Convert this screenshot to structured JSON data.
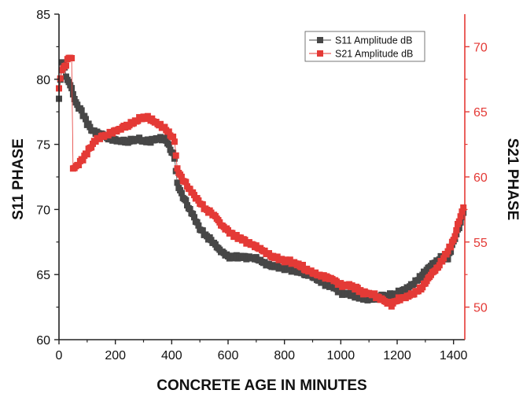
{
  "chart_data": {
    "type": "scatter",
    "title": "",
    "xlabel": "CONCRETE AGE IN MINUTES",
    "ylabel_left": "S11 PHASE",
    "ylabel_right": "S21 PHASE",
    "xlim": [
      0,
      1440
    ],
    "ylim_left": [
      60,
      85
    ],
    "ylim_right": [
      47.5,
      72.5
    ],
    "x_ticks": [
      0,
      200,
      400,
      600,
      800,
      1000,
      1200,
      1400
    ],
    "y_left_ticks": [
      60,
      65,
      70,
      75,
      80,
      85
    ],
    "y_right_ticks": [
      50,
      55,
      60,
      65,
      70
    ],
    "grid": false,
    "legend_position": "top-right",
    "colors": {
      "s11": "#474747",
      "s21": "#e43a36",
      "right_axis": "#e43a36"
    },
    "series": [
      {
        "name": "S11 Amplitude dB",
        "axis": "left",
        "color": "#474747",
        "x": [
          0,
          10,
          20,
          30,
          40,
          50,
          60,
          80,
          100,
          120,
          150,
          180,
          200,
          240,
          280,
          320,
          360,
          380,
          400,
          410,
          420,
          440,
          460,
          480,
          500,
          520,
          540,
          560,
          580,
          600,
          620,
          660,
          700,
          740,
          780,
          820,
          860,
          900,
          940,
          980,
          1000,
          1040,
          1080,
          1100,
          1120,
          1150,
          1180,
          1200,
          1220,
          1250,
          1280,
          1300,
          1330,
          1360,
          1380,
          1400,
          1420,
          1435
        ],
        "y": [
          78.5,
          81.3,
          80.8,
          79.8,
          79.6,
          78.8,
          78.2,
          77.5,
          76.6,
          76.0,
          75.7,
          75.4,
          75.3,
          75.2,
          75.4,
          75.2,
          75.5,
          75.3,
          74.5,
          74.0,
          72.0,
          71.0,
          70.2,
          69.3,
          68.5,
          68.0,
          67.6,
          67.1,
          66.7,
          66.3,
          66.4,
          66.3,
          66.2,
          65.8,
          65.6,
          65.4,
          65.2,
          64.9,
          64.3,
          63.9,
          63.6,
          63.4,
          63.2,
          63.0,
          63.2,
          63.4,
          63.4,
          63.6,
          63.8,
          64.2,
          64.8,
          65.3,
          65.9,
          66.4,
          66.2,
          67.5,
          68.6,
          69.8
        ]
      },
      {
        "name": "S21 Amplitude dB",
        "axis": "right",
        "color": "#e43a36",
        "x": [
          0,
          10,
          20,
          30,
          40,
          45,
          50,
          70,
          90,
          110,
          130,
          160,
          190,
          220,
          250,
          280,
          300,
          320,
          340,
          360,
          380,
          400,
          410,
          420,
          440,
          460,
          480,
          500,
          520,
          540,
          560,
          580,
          600,
          640,
          680,
          720,
          760,
          800,
          840,
          880,
          920,
          960,
          1000,
          1040,
          1080,
          1120,
          1160,
          1180,
          1200,
          1230,
          1260,
          1290,
          1320,
          1340,
          1360,
          1380,
          1400,
          1420,
          1435
        ],
        "y": [
          66.8,
          68.2,
          68.4,
          68.9,
          69.2,
          69.0,
          60.6,
          61.0,
          61.5,
          62.2,
          62.8,
          63.1,
          63.4,
          63.7,
          64.0,
          64.4,
          64.6,
          64.5,
          64.2,
          64.0,
          63.6,
          63.2,
          62.8,
          60.6,
          59.8,
          59.2,
          58.5,
          58.0,
          57.5,
          57.2,
          56.8,
          56.2,
          55.8,
          55.3,
          54.8,
          54.4,
          53.9,
          53.6,
          53.4,
          52.9,
          52.5,
          52.2,
          51.7,
          51.6,
          51.1,
          50.9,
          50.4,
          50.2,
          50.6,
          50.8,
          51.1,
          51.6,
          52.5,
          53.0,
          53.6,
          54.3,
          55.1,
          56.6,
          57.7
        ]
      }
    ]
  }
}
